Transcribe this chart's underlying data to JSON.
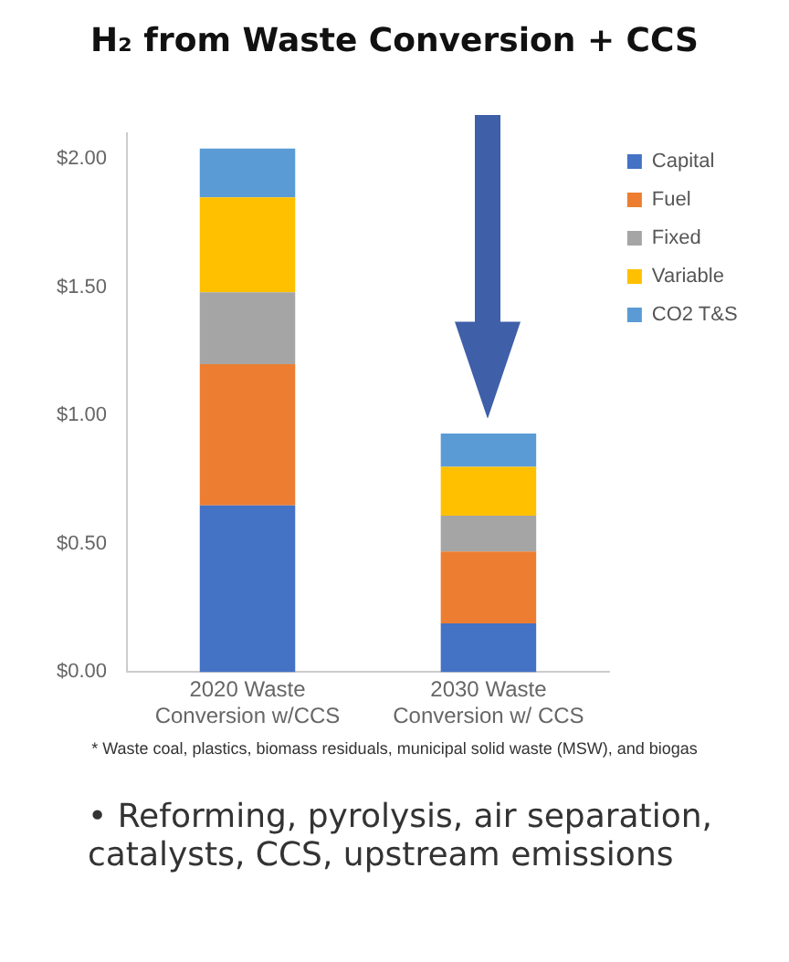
{
  "chart_data": {
    "type": "bar",
    "title": "H₂ from Waste Conversion + CCS",
    "categories": [
      "2020 Waste Conversion w/CCS",
      "2030 Waste Conversion w/ CCS"
    ],
    "stacked": true,
    "series": [
      {
        "name": "Capital",
        "color": "#4472c4",
        "values": [
          0.65,
          0.19
        ]
      },
      {
        "name": "Fuel",
        "color": "#ed7d31",
        "values": [
          0.55,
          0.28
        ]
      },
      {
        "name": "Fixed",
        "color": "#a5a5a5",
        "values": [
          0.28,
          0.14
        ]
      },
      {
        "name": "Variable",
        "color": "#ffc000",
        "values": [
          0.37,
          0.19
        ]
      },
      {
        "name": "CO2 T&S",
        "color": "#5b9bd5",
        "values": [
          0.19,
          0.13
        ]
      }
    ],
    "ylim": [
      0,
      2.1
    ],
    "yticks": [
      {
        "value": 0,
        "label": "$0.00"
      },
      {
        "value": 0.5,
        "label": "$0.50"
      },
      {
        "value": 1,
        "label": "$1.00"
      },
      {
        "value": 1.5,
        "label": "$1.50"
      },
      {
        "value": 2,
        "label": "$2.00"
      }
    ],
    "grid": false,
    "legend": "top right",
    "annotations": [
      "* Waste coal, plastics, biomass residuals, municipal solid waste (MSW), and biogas",
      "• Reforming, pyrolysis, air separation, catalysts, CCS, upstream emissions"
    ]
  }
}
